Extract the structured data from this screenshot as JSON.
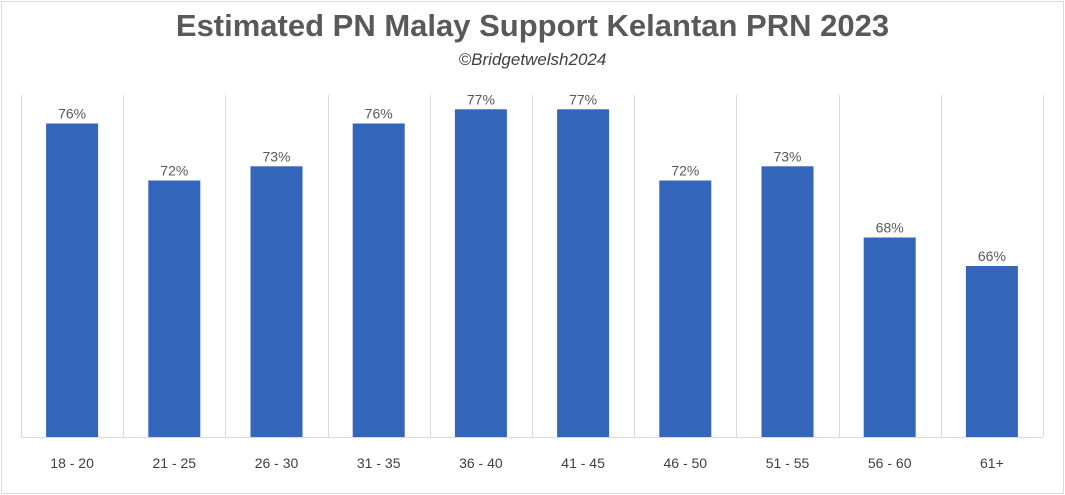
{
  "chart_data": {
    "type": "bar",
    "title": "Estimated PN Malay Support Kelantan PRN 2023",
    "subtitle": "©Bridgetwelsh2024",
    "categories": [
      "18 - 20",
      "21 - 25",
      "26 - 30",
      "31 - 35",
      "36 - 40",
      "41 - 45",
      "46 - 50",
      "51 - 55",
      "56 - 60",
      "61+"
    ],
    "values": [
      76,
      72,
      73,
      76,
      77,
      77,
      72,
      73,
      68,
      66
    ],
    "data_labels": [
      "76%",
      "72%",
      "73%",
      "76%",
      "77%",
      "77%",
      "72%",
      "73%",
      "68%",
      "66%"
    ],
    "value_unit": "%",
    "ylim": [
      54,
      78
    ],
    "grid": "vertical",
    "bar_color": "#3366bb",
    "xlabel": "",
    "ylabel": ""
  }
}
